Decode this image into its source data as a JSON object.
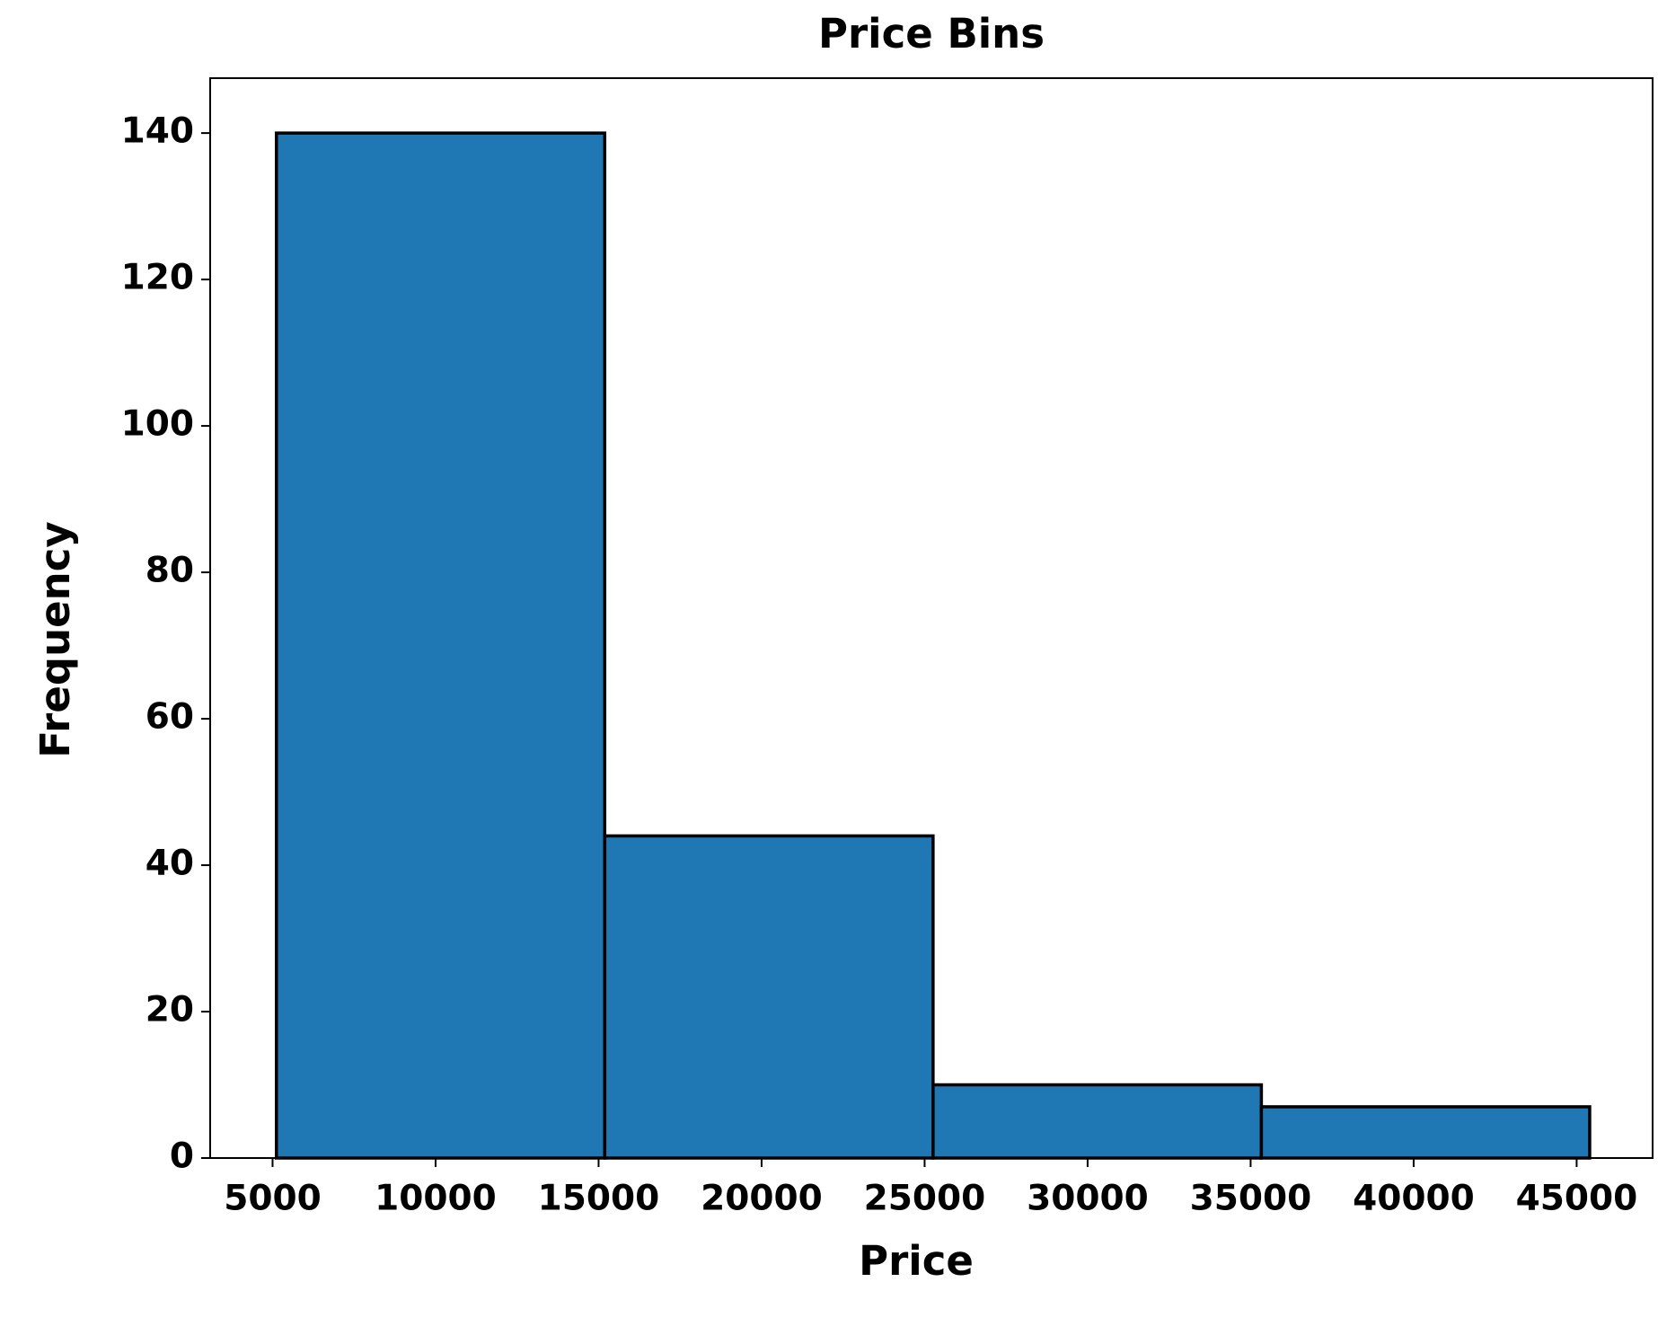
{
  "chart_data": {
    "type": "histogram",
    "title": "Price Bins",
    "xlabel": "Price",
    "ylabel": "Frequency",
    "bins": [
      5118,
      15188.5,
      25259,
      35329.5,
      45400
    ],
    "values": [
      140,
      44,
      10,
      7
    ],
    "color": "#1f77b4",
    "edgecolor": "#000000",
    "xlim": [
      3086,
      47330
    ],
    "xticks": [
      5000,
      10000,
      15000,
      20000,
      25000,
      30000,
      35000,
      40000,
      45000
    ],
    "ylim": [
      0,
      147.5
    ],
    "yticks": [
      0,
      20,
      40,
      60,
      80,
      100,
      120,
      140
    ],
    "grid": false
  }
}
